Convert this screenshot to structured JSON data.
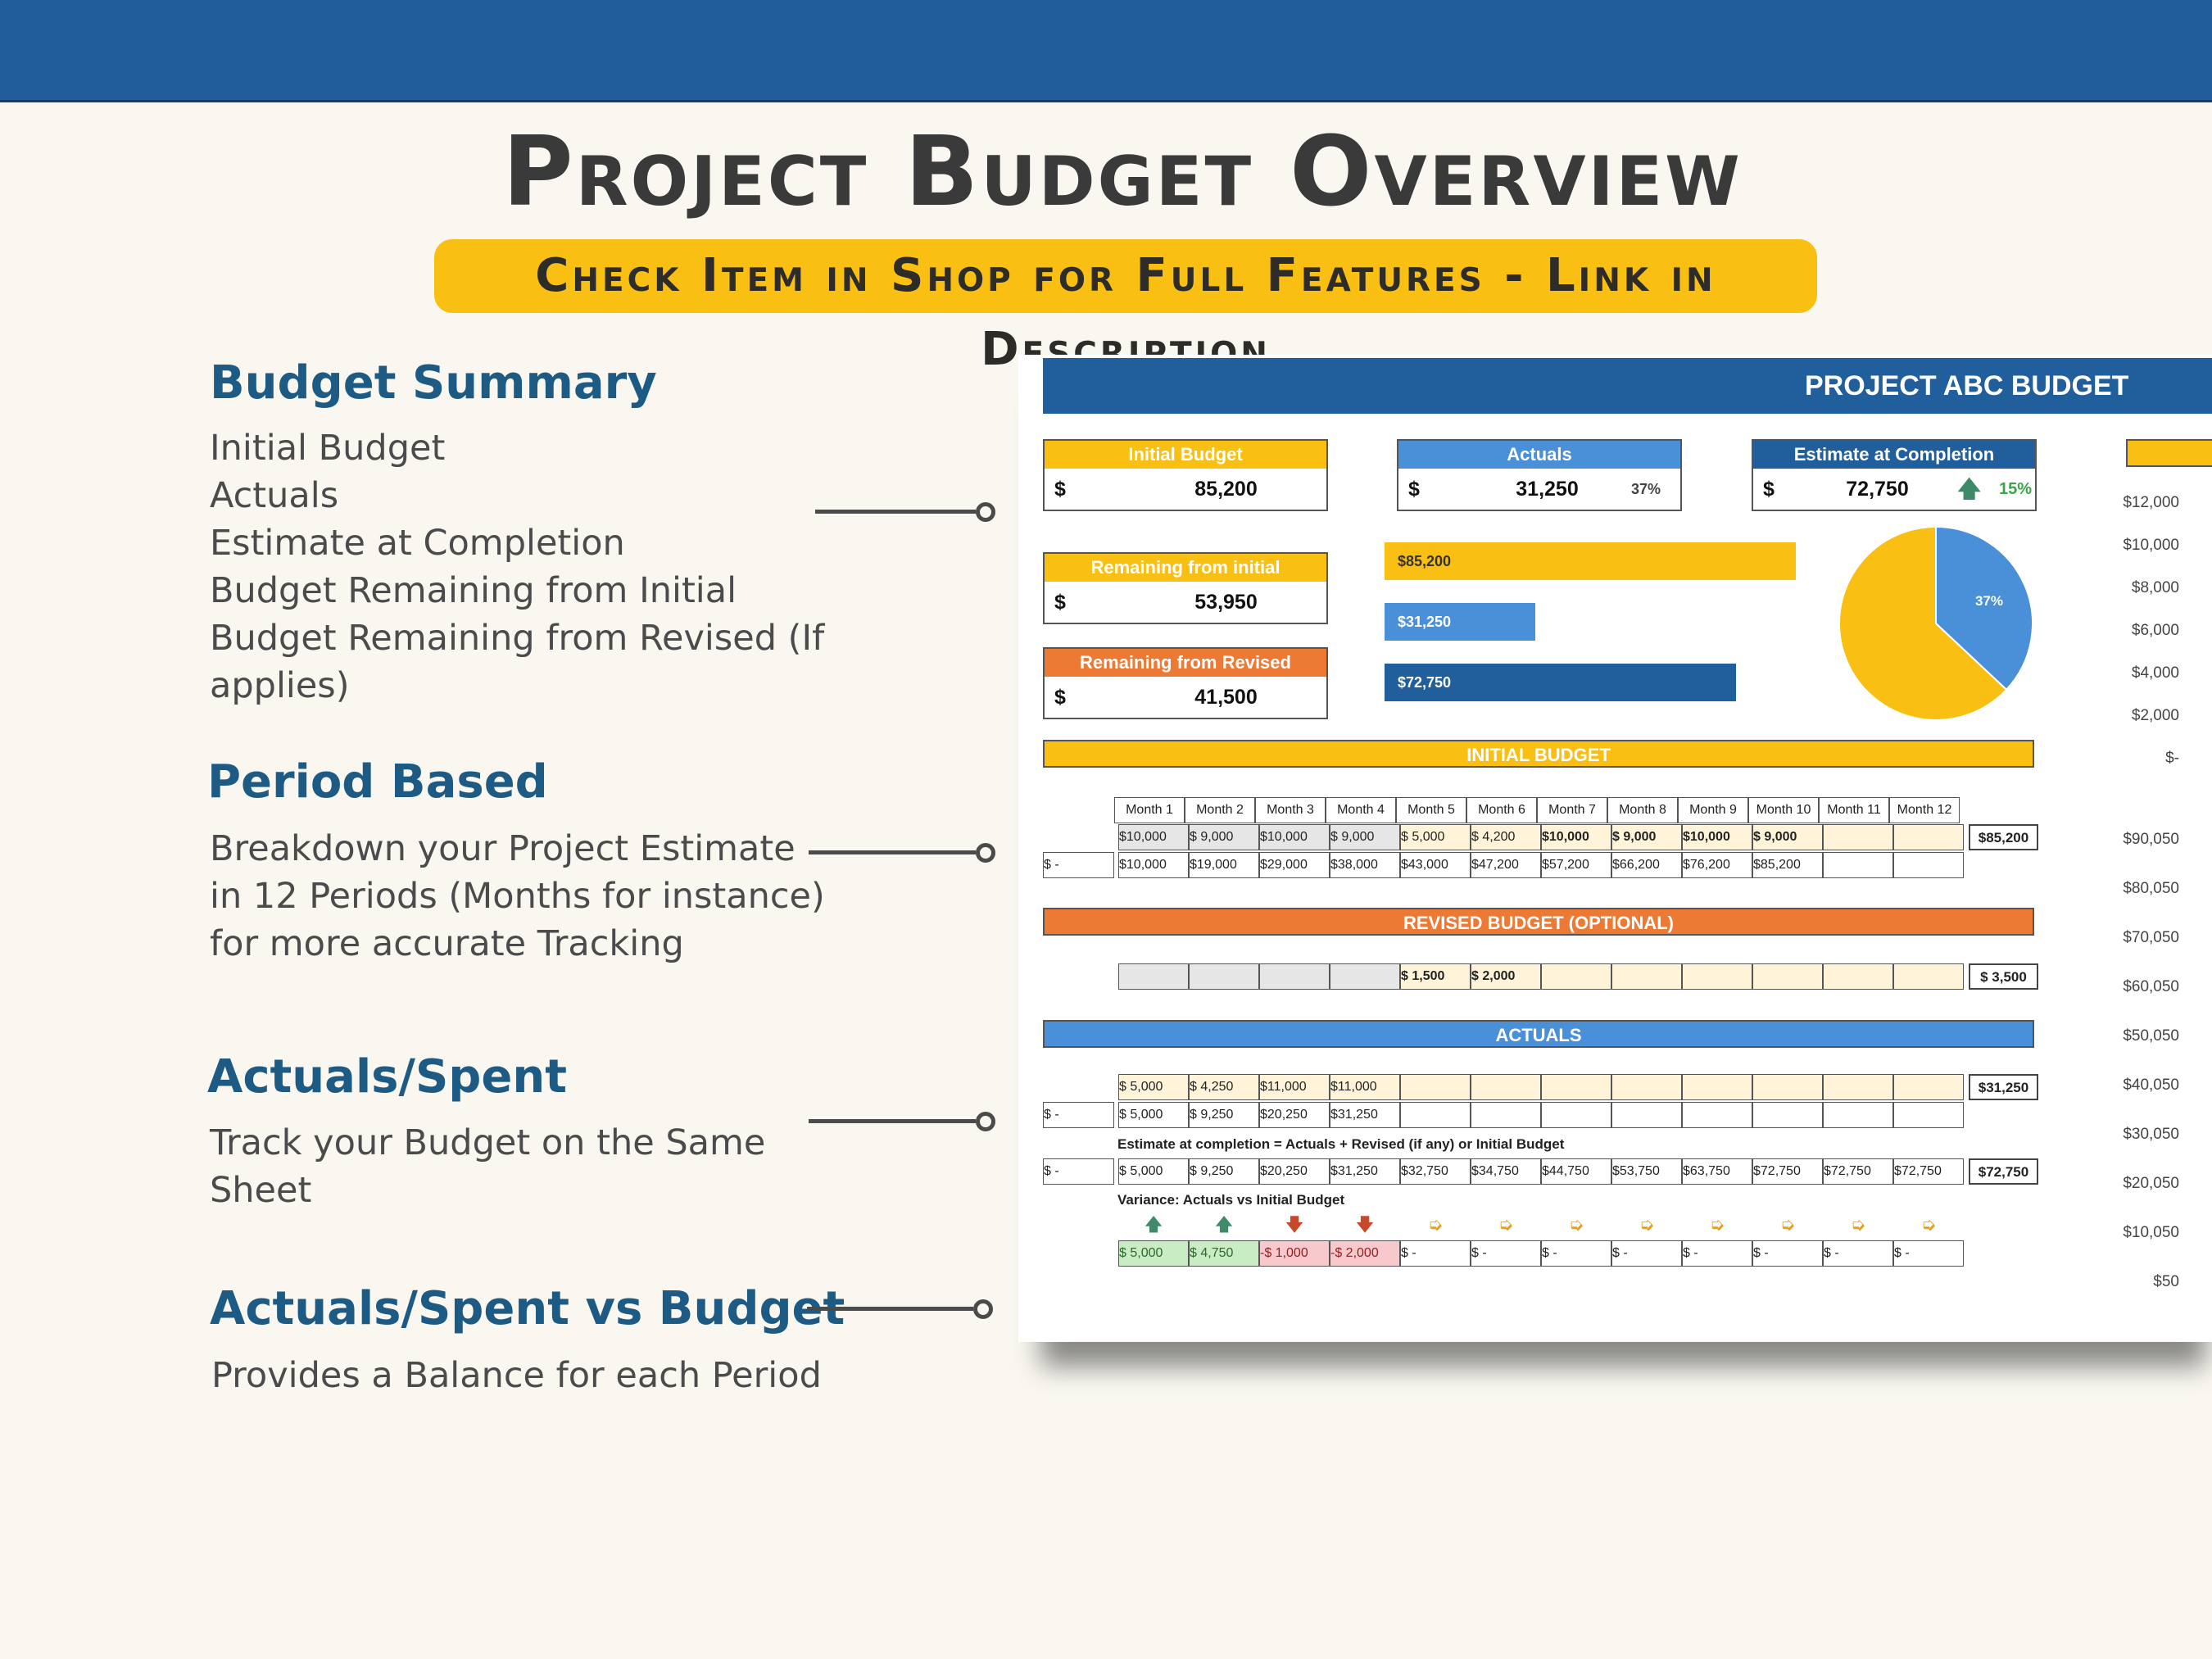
{
  "header": {
    "title": "Project Budget Overview",
    "banner": "Check Item in Shop for Full Features - Link in Description"
  },
  "features": [
    {
      "heading": "Budget Summary",
      "lines": [
        "Initial Budget",
        "Actuals",
        "Estimate at Completion",
        "Budget Remaining from Initial",
        "Budget Remaining from Revised (If",
        "applies)"
      ]
    },
    {
      "heading": "Period Based",
      "lines": [
        "Breakdown your Project Estimate",
        "in 12 Periods (Months for instance)",
        "for more accurate Tracking"
      ]
    },
    {
      "heading": "Actuals/Spent",
      "lines": [
        "Track your Budget on the Same",
        "Sheet"
      ]
    },
    {
      "heading": "Actuals/Spent vs Budget",
      "lines": [
        "Provides a Balance for each Period"
      ]
    }
  ],
  "sheet": {
    "title": "PROJECT ABC BUDGET",
    "colors": {
      "yellow": "#f9bf13",
      "blue": "#4a90d9",
      "navy": "#215e9c",
      "orange": "#ec7a34"
    },
    "kpis": {
      "initial": {
        "label": "Initial Budget",
        "currency": "$",
        "value": "85,200"
      },
      "actuals": {
        "label": "Actuals",
        "currency": "$",
        "value": "31,250",
        "pct": "37%"
      },
      "eac": {
        "label": "Estimate at Completion",
        "currency": "$",
        "value": "72,750",
        "pct": "15%"
      },
      "rem_initial": {
        "label": "Remaining from initial",
        "currency": "$",
        "value": "53,950"
      },
      "rem_revised": {
        "label": "Remaining from Revised",
        "currency": "$",
        "value": "41,500"
      }
    },
    "bars": [
      {
        "label": "$85,200",
        "value": 85200,
        "color": "#f9bf13"
      },
      {
        "label": "$31,250",
        "value": 31250,
        "color": "#4a90d9"
      },
      {
        "label": "$72,750",
        "value": 72750,
        "color": "#215e9c"
      }
    ],
    "pie": {
      "slices": [
        {
          "value": 37,
          "color": "#4a90d9",
          "label": "37%"
        },
        {
          "value": 63,
          "color": "#f9bf13"
        }
      ]
    },
    "sections": {
      "initial": "INITIAL BUDGET",
      "revised": "REVISED BUDGET (OPTIONAL)",
      "actuals": "ACTUALS"
    },
    "months": [
      "Month 1",
      "Month 2",
      "Month 3",
      "Month 4",
      "Month 5",
      "Month 6",
      "Month 7",
      "Month 8",
      "Month 9",
      "Month 10",
      "Month 11",
      "Month 12"
    ],
    "initial_row": [
      "$10,000",
      "$ 9,000",
      "$10,000",
      "$ 9,000",
      "$ 5,000",
      "$ 4,200",
      "$10,000",
      "$ 9,000",
      "$10,000",
      "$ 9,000",
      "",
      ""
    ],
    "initial_total": "$85,200",
    "initial_cum": [
      "$10,000",
      "$19,000",
      "$29,000",
      "$38,000",
      "$43,000",
      "$47,200",
      "$57,200",
      "$66,200",
      "$76,200",
      "$85,200",
      "",
      ""
    ],
    "cum_prefix": "$ -",
    "revised_row": [
      "",
      "",
      "",
      "",
      "$ 1,500",
      "$ 2,000",
      "",
      "",
      "",
      "",
      "",
      ""
    ],
    "revised_total": "$ 3,500",
    "actuals_row": [
      "$ 5,000",
      "$ 4,250",
      "$11,000",
      "$11,000",
      "",
      "",
      "",
      "",
      "",
      "",
      "",
      ""
    ],
    "actuals_total": "$31,250",
    "actuals_cum": [
      "$ 5,000",
      "$ 9,250",
      "$20,250",
      "$31,250",
      "",
      "",
      "",
      "",
      "",
      "",
      "",
      ""
    ],
    "eac_label": "Estimate at completion = Actuals + Revised (if any) or Initial Budget",
    "eac_row": [
      "$ 5,000",
      "$ 9,250",
      "$20,250",
      "$31,250",
      "$32,750",
      "$34,750",
      "$44,750",
      "$53,750",
      "$63,750",
      "$72,750",
      "$72,750",
      "$72,750"
    ],
    "eac_total": "$72,750",
    "variance_label": "Variance: Actuals vs Initial Budget",
    "variance_icons": [
      "up",
      "up",
      "down",
      "down",
      "right",
      "right",
      "right",
      "right",
      "right",
      "right",
      "right",
      "right"
    ],
    "variance_row": [
      "$ 5,000",
      "$ 4,750",
      "-$ 1,000",
      "-$ 2,000",
      "$ -",
      "$ -",
      "$ -",
      "$ -",
      "$ -",
      "$ -",
      "$ -",
      "$ -"
    ],
    "axis_top": [
      "$12,000",
      "$10,000",
      "$8,000",
      "$6,000",
      "$4,000",
      "$2,000",
      "$-"
    ],
    "axis_bottom": [
      "$90,050",
      "$80,050",
      "$70,050",
      "$60,050",
      "$50,050",
      "$40,050",
      "$30,050",
      "$20,050",
      "$10,050",
      "$50"
    ]
  }
}
